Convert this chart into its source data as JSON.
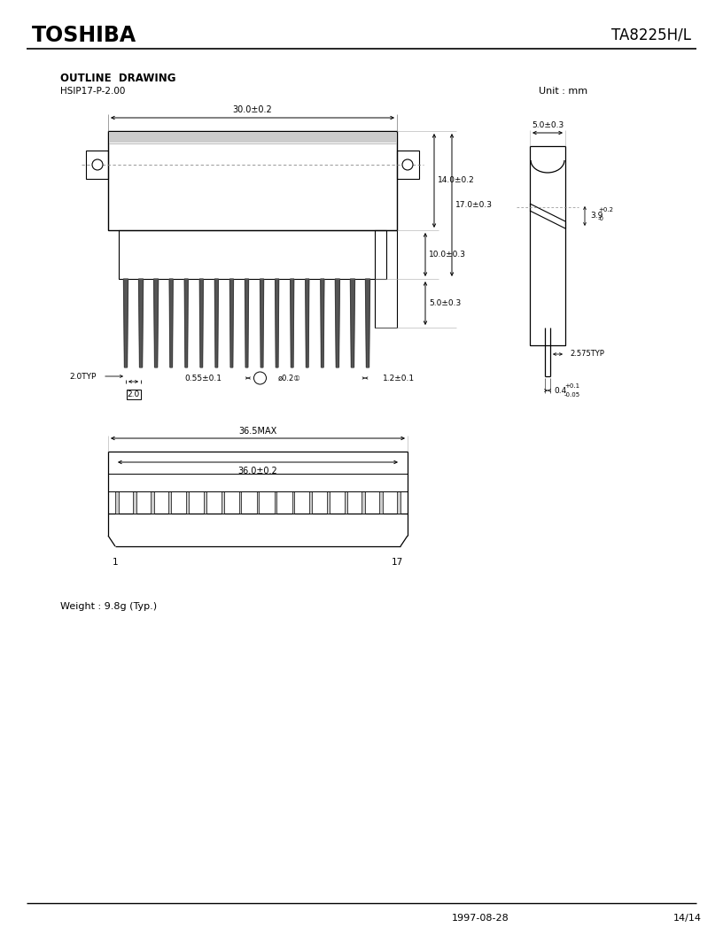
{
  "title_left": "TOSHIBA",
  "title_right": "TA8225H/L",
  "outline_label": "OUTLINE  DRAWING",
  "package_label": "HSIP17-P-2.00",
  "unit_label": "Unit : mm",
  "weight_label": "Weight : 9.8g (Typ.)",
  "footer_date": "1997-08-28",
  "footer_page": "14/14",
  "dim_30": "30.0±0.2",
  "dim_14": "14.0±0.2",
  "dim_17": "17.0±0.3",
  "dim_10": "10.0±0.3",
  "dim_5bot": "5.0±0.3",
  "dim_5top": "5.0±0.3",
  "dim_2typ": "2.0TYP",
  "dim_2box": "2.0",
  "dim_055": "0.55±0.1",
  "dim_dia": "ø0.2①",
  "dim_12": "1.2±0.1",
  "dim_39": "3.9",
  "dim_2575": "2.575TYP",
  "dim_04": "0.4",
  "dim_365": "36.5MAX",
  "dim_360": "36.0±0.2",
  "pin1": "1",
  "pin17": "17",
  "bg_color": "#ffffff",
  "line_color": "#000000"
}
